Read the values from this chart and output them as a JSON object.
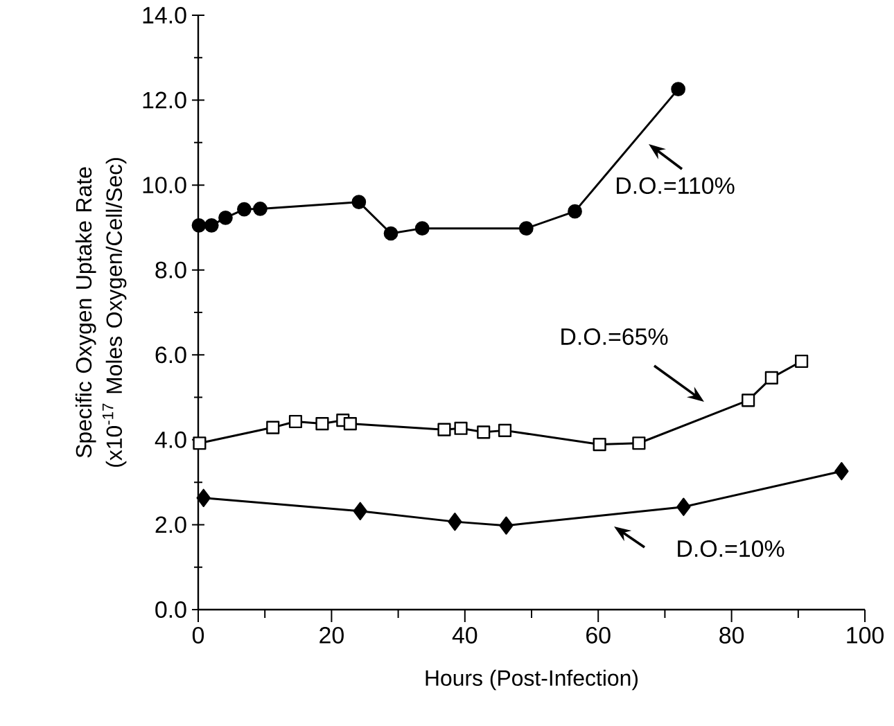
{
  "chart_data": {
    "type": "line",
    "xlabel": "Hours (Post-Infection)",
    "ylabel": "Specific Oxygen Uptake Rate (x10$^{-17}$ Moles Oxygen/Cell/Sec)",
    "xlim": [
      0,
      100
    ],
    "xticks": [
      0,
      20,
      40,
      60,
      80,
      100
    ],
    "ylim": [
      0,
      14
    ],
    "yticks": [
      {
        "value": 0,
        "label": "0.0"
      },
      {
        "value": 2,
        "label": "2.0"
      },
      {
        "value": 4,
        "label": "4.0"
      },
      {
        "value": 6,
        "label": "6.0"
      },
      {
        "value": 8,
        "label": "8.0"
      },
      {
        "value": 10,
        "label": "10.0"
      },
      {
        "value": 12,
        "label": "12.0"
      },
      {
        "value": 14,
        "label": "14.0"
      }
    ],
    "grid": false,
    "line_style": "solid",
    "series": [
      {
        "color": "#000000",
        "marker": "circle",
        "x": [
          0.1,
          2.0,
          4.1,
          6.9,
          9.3,
          24.1,
          28.9,
          33.6,
          49.2,
          56.5,
          72.0
        ],
        "values": [
          9.05,
          9.05,
          9.23,
          9.43,
          9.44,
          9.6,
          8.86,
          8.98,
          8.98,
          9.38,
          12.26
        ]
      },
      {
        "color": "#000000",
        "marker": "square",
        "x": [
          0.2,
          11.2,
          14.6,
          18.6,
          21.7,
          22.8,
          36.9,
          39.4,
          42.8,
          46.0,
          60.2,
          66.1,
          82.5,
          86.0,
          90.5
        ],
        "values": [
          3.92,
          4.29,
          4.43,
          4.38,
          4.46,
          4.38,
          4.24,
          4.27,
          4.18,
          4.22,
          3.89,
          3.92,
          4.93,
          5.46,
          5.85
        ]
      },
      {
        "color": "#000000",
        "marker": "diamond",
        "x": [
          0.8,
          24.3,
          38.5,
          46.2,
          72.8,
          96.5
        ],
        "values": [
          2.63,
          2.32,
          2.07,
          1.98,
          2.42,
          3.26
        ]
      }
    ],
    "annotations": [
      "D.O.=110%",
      "D.O.=65%",
      "D.O.=10%"
    ]
  }
}
